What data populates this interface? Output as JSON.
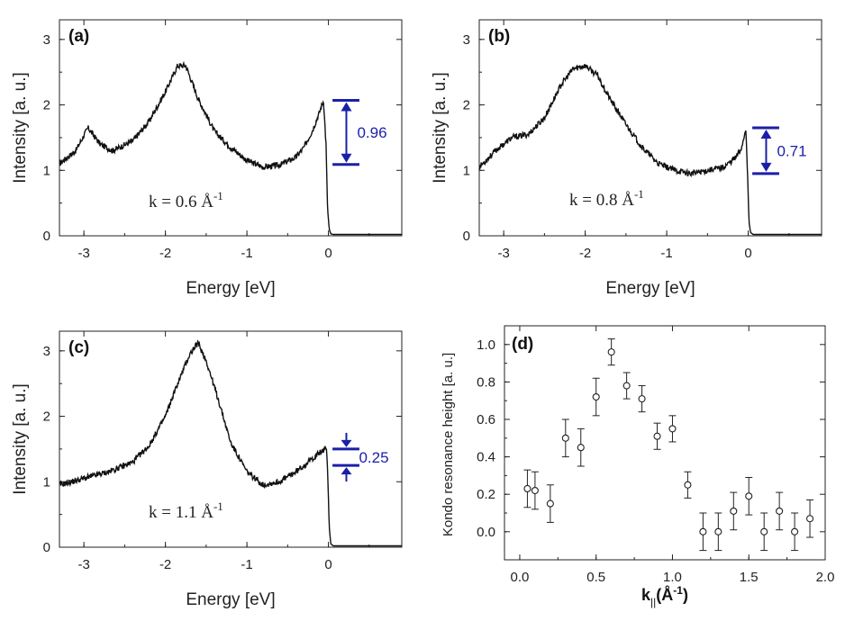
{
  "chart_data": [
    {
      "type": "line",
      "panel_label": "(a)",
      "xlabel": "Energy [eV]",
      "ylabel": "Intensity [a. u.]",
      "xlim": [
        -3.3,
        0.9
      ],
      "ylim": [
        0,
        3.3
      ],
      "xticks": [
        -3,
        -2,
        -1,
        0
      ],
      "xtick_labels": [
        "-3",
        "-2",
        "-1",
        "0"
      ],
      "yticks": [
        0,
        1,
        2,
        3
      ],
      "ytick_labels": [
        "0",
        "1",
        "2",
        "3"
      ],
      "k_label": {
        "prefix": "k = 0.6 ",
        "unit": "Å",
        "exp": "-1"
      },
      "series": [
        {
          "name": "k = 0.6",
          "x": [
            -3.3,
            -3.1,
            -2.95,
            -2.8,
            -2.65,
            -2.4,
            -2.2,
            -2.0,
            -1.85,
            -1.75,
            -1.6,
            -1.4,
            -1.2,
            -1.0,
            -0.8,
            -0.6,
            -0.4,
            -0.3,
            -0.2,
            -0.12,
            -0.06,
            -0.03,
            -0.01,
            0.01,
            0.03,
            0.06,
            0.1,
            0.2,
            0.9
          ],
          "y": [
            1.1,
            1.3,
            1.65,
            1.4,
            1.3,
            1.45,
            1.75,
            2.2,
            2.6,
            2.6,
            2.1,
            1.6,
            1.35,
            1.15,
            1.05,
            1.08,
            1.2,
            1.35,
            1.6,
            1.85,
            2.07,
            1.4,
            0.4,
            0.1,
            0.03,
            0.02,
            0.02,
            0.02,
            0.02
          ]
        }
      ],
      "annotation": {
        "value": "0.96",
        "y_top": 2.07,
        "y_bottom": 1.09,
        "style": "double-arrow"
      }
    },
    {
      "type": "line",
      "panel_label": "(b)",
      "xlabel": "Energy [eV]",
      "ylabel": "Intensity [a. u.]",
      "xlim": [
        -3.3,
        0.9
      ],
      "ylim": [
        0,
        3.3
      ],
      "xticks": [
        -3,
        -2,
        -1,
        0
      ],
      "xtick_labels": [
        "-3",
        "-2",
        "-1",
        "0"
      ],
      "yticks": [
        0,
        1,
        2,
        3
      ],
      "ytick_labels": [
        "0",
        "1",
        "2",
        "3"
      ],
      "k_label": {
        "prefix": "k = 0.8 ",
        "unit": "Å",
        "exp": "-1"
      },
      "series": [
        {
          "name": "k = 0.8",
          "x": [
            -3.3,
            -3.1,
            -2.9,
            -2.7,
            -2.5,
            -2.3,
            -2.15,
            -2.0,
            -1.85,
            -1.7,
            -1.5,
            -1.3,
            -1.1,
            -0.9,
            -0.7,
            -0.5,
            -0.3,
            -0.15,
            -0.08,
            -0.03,
            -0.01,
            0.01,
            0.03,
            0.06,
            0.1,
            0.2,
            0.9
          ],
          "y": [
            1.05,
            1.3,
            1.5,
            1.55,
            1.8,
            2.3,
            2.55,
            2.6,
            2.45,
            2.1,
            1.7,
            1.35,
            1.1,
            1.0,
            0.95,
            1.0,
            1.05,
            1.2,
            1.35,
            1.65,
            1.0,
            0.2,
            0.05,
            0.02,
            0.02,
            0.02,
            0.02
          ]
        }
      ],
      "annotation": {
        "value": "0.71",
        "y_top": 1.65,
        "y_bottom": 0.95,
        "style": "double-arrow"
      }
    },
    {
      "type": "line",
      "panel_label": "(c)",
      "xlabel": "Energy [eV]",
      "ylabel": "Intensity [a. u.]",
      "xlim": [
        -3.3,
        0.9
      ],
      "ylim": [
        0,
        3.3
      ],
      "xticks": [
        -3,
        -2,
        -1,
        0
      ],
      "xtick_labels": [
        "-3",
        "-2",
        "-1",
        "0"
      ],
      "yticks": [
        0,
        1,
        2,
        3
      ],
      "ytick_labels": [
        "0",
        "1",
        "2",
        "3"
      ],
      "k_label": {
        "prefix": "k = 1.1 ",
        "unit": "Å",
        "exp": "-1"
      },
      "series": [
        {
          "name": "k = 1.1",
          "x": [
            -3.3,
            -3.0,
            -2.7,
            -2.4,
            -2.2,
            -2.0,
            -1.85,
            -1.7,
            -1.6,
            -1.5,
            -1.35,
            -1.2,
            -1.0,
            -0.8,
            -0.6,
            -0.4,
            -0.2,
            -0.1,
            -0.04,
            -0.02,
            -0.01,
            0.01,
            0.03,
            0.06,
            0.1,
            0.2,
            0.9
          ],
          "y": [
            0.95,
            1.05,
            1.15,
            1.3,
            1.55,
            2.0,
            2.5,
            2.95,
            3.12,
            2.85,
            2.25,
            1.6,
            1.15,
            0.95,
            1.0,
            1.15,
            1.35,
            1.45,
            1.5,
            1.45,
            1.2,
            0.3,
            0.05,
            0.02,
            0.02,
            0.02,
            0.02
          ]
        }
      ],
      "annotation": {
        "value": "0.25",
        "y_top": 1.5,
        "y_bottom": 1.25,
        "style": "converging-arrows"
      }
    },
    {
      "type": "scatter",
      "panel_label": "(d)",
      "xlabel_base": "k",
      "xlabel_sub": "||",
      "xlabel_rest": "(Å",
      "xlabel_sup": "-1",
      "xlabel_close": ")",
      "ylabel": "Kondo resonance height [a. u.]",
      "xlim": [
        -0.1,
        2.0
      ],
      "ylim": [
        -0.15,
        1.1
      ],
      "xticks": [
        0.0,
        0.5,
        1.0,
        1.5,
        2.0
      ],
      "xtick_labels": [
        "0.0",
        "0.5",
        "1.0",
        "1.5",
        "2.0"
      ],
      "yticks": [
        0.0,
        0.2,
        0.4,
        0.6,
        0.8,
        1.0
      ],
      "ytick_labels": [
        "0.0",
        "0.2",
        "0.4",
        "0.6",
        "0.8",
        "1.0"
      ],
      "x": [
        0.05,
        0.1,
        0.2,
        0.3,
        0.4,
        0.5,
        0.6,
        0.7,
        0.8,
        0.9,
        1.0,
        1.1,
        1.2,
        1.3,
        1.4,
        1.5,
        1.6,
        1.7,
        1.8,
        1.9
      ],
      "y": [
        0.23,
        0.22,
        0.15,
        0.5,
        0.45,
        0.72,
        0.96,
        0.78,
        0.71,
        0.51,
        0.55,
        0.25,
        0.0,
        0.0,
        0.11,
        0.19,
        0.0,
        0.11,
        0.0,
        0.07
      ],
      "err": [
        0.1,
        0.1,
        0.1,
        0.1,
        0.1,
        0.1,
        0.07,
        0.07,
        0.07,
        0.07,
        0.07,
        0.07,
        0.1,
        0.1,
        0.1,
        0.1,
        0.1,
        0.1,
        0.1,
        0.1
      ]
    }
  ]
}
